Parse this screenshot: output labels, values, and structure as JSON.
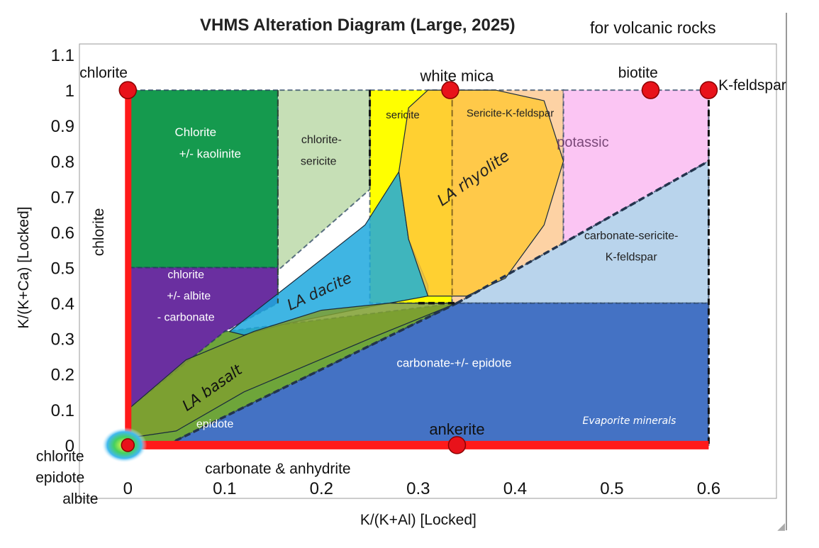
{
  "header": {
    "title": "VHMS Alteration Diagram (Large, 2025)",
    "subtitle": "for volcanic rocks"
  },
  "axes": {
    "xlabel": "K/(K+Al) [Locked]",
    "ylabel": "K/(K+Ca) [Locked]",
    "xlim": [
      -0.05,
      0.67
    ],
    "ylim": [
      -0.15,
      1.13
    ],
    "x_ticks": [
      {
        "v": 0,
        "label": "0"
      },
      {
        "v": 0.1,
        "label": "0.1"
      },
      {
        "v": 0.2,
        "label": "0.2"
      },
      {
        "v": 0.3,
        "label": "0.3"
      },
      {
        "v": 0.4,
        "label": "0.4"
      },
      {
        "v": 0.5,
        "label": "0.5"
      },
      {
        "v": 0.6,
        "label": "0.6"
      }
    ],
    "y_ticks": [
      {
        "v": 0,
        "label": "0"
      },
      {
        "v": 0.1,
        "label": "0.1"
      },
      {
        "v": 0.2,
        "label": "0.2"
      },
      {
        "v": 0.3,
        "label": "0.3"
      },
      {
        "v": 0.4,
        "label": "0.4"
      },
      {
        "v": 0.5,
        "label": "0.5"
      },
      {
        "v": 0.6,
        "label": "0.6"
      },
      {
        "v": 0.7,
        "label": "0.7"
      },
      {
        "v": 0.8,
        "label": "0.8"
      },
      {
        "v": 0.9,
        "label": "0.9"
      },
      {
        "v": 1,
        "label": "1"
      },
      {
        "v": 1.1,
        "label": "1.1"
      }
    ]
  },
  "fields": [
    {
      "id": "chlorite-kaolinite",
      "color": "#159a4e",
      "points": [
        [
          0,
          0.5
        ],
        [
          0.155,
          0.5
        ],
        [
          0.155,
          1
        ],
        [
          0,
          1
        ]
      ]
    },
    {
      "id": "chlorite-sericite",
      "color": "#c6dfb6",
      "points": [
        [
          0.155,
          0.5
        ],
        [
          0.155,
          1
        ],
        [
          0.25,
          1
        ],
        [
          0.25,
          0.72
        ],
        [
          0.15,
          0.48
        ]
      ]
    },
    {
      "id": "sericite",
      "color": "#ffff00",
      "points": [
        [
          0.25,
          1
        ],
        [
          0.335,
          1
        ],
        [
          0.335,
          0.4
        ],
        [
          0.25,
          0.4
        ]
      ]
    },
    {
      "id": "sericite-k-feldspar",
      "color": "#fdd2a4",
      "points": [
        [
          0.335,
          1
        ],
        [
          0.45,
          1
        ],
        [
          0.45,
          0.44
        ],
        [
          0.335,
          0.4
        ]
      ]
    },
    {
      "id": "potassic",
      "color": "#fbc5f3",
      "points": [
        [
          0.45,
          1
        ],
        [
          0.6,
          1
        ],
        [
          0.6,
          0.8
        ],
        [
          0.45,
          0.55
        ]
      ]
    },
    {
      "id": "carbonate-sericite-k-feldspar",
      "color": "#b9d4ec",
      "points": [
        [
          0.34,
          0.4
        ],
        [
          0.6,
          0.8
        ],
        [
          0.6,
          0.4
        ]
      ]
    },
    {
      "id": "chlorite-albite-carbonate",
      "color": "#6a2fa0",
      "points": [
        [
          0,
          0
        ],
        [
          0,
          0.5
        ],
        [
          0.155,
          0.5
        ],
        [
          0.155,
          0.4
        ],
        [
          0.1,
          0.32
        ]
      ]
    },
    {
      "id": "epidote",
      "color": "#6ea53a",
      "points": [
        [
          0,
          0
        ],
        [
          0.04,
          0
        ],
        [
          0.34,
          0.4
        ],
        [
          0.1,
          0.32
        ],
        [
          0,
          0.1
        ]
      ]
    },
    {
      "id": "carbonate-epidote",
      "color": "#4472c4",
      "points": [
        [
          0.04,
          0
        ],
        [
          0.6,
          0
        ],
        [
          0.6,
          0.4
        ],
        [
          0.34,
          0.4
        ]
      ]
    }
  ],
  "rock_fields": [
    {
      "id": "la-dacite",
      "color": "#1da8de",
      "points": [
        [
          0.105,
          0.32
        ],
        [
          0.18,
          0.48
        ],
        [
          0.245,
          0.62
        ],
        [
          0.28,
          0.77
        ],
        [
          0.29,
          0.58
        ],
        [
          0.31,
          0.45
        ],
        [
          0.31,
          0.42
        ],
        [
          0.25,
          0.39
        ],
        [
          0.16,
          0.34
        ],
        [
          0.12,
          0.31
        ]
      ]
    },
    {
      "id": "la-rhyolite",
      "color": "#ffc83a",
      "points": [
        [
          0.28,
          0.77
        ],
        [
          0.29,
          0.95
        ],
        [
          0.31,
          1.0
        ],
        [
          0.38,
          1.0
        ],
        [
          0.43,
          0.97
        ],
        [
          0.45,
          0.8
        ],
        [
          0.43,
          0.62
        ],
        [
          0.39,
          0.47
        ],
        [
          0.35,
          0.42
        ],
        [
          0.31,
          0.42
        ],
        [
          0.29,
          0.58
        ]
      ]
    },
    {
      "id": "la-basalt",
      "color": "#7f9f30",
      "points": [
        [
          0,
          0.1
        ],
        [
          0.06,
          0.24
        ],
        [
          0.13,
          0.32
        ],
        [
          0.2,
          0.38
        ],
        [
          0.27,
          0.4
        ],
        [
          0.34,
          0.4
        ],
        [
          0.25,
          0.3
        ],
        [
          0.12,
          0.15
        ],
        [
          0.05,
          0.04
        ],
        [
          0,
          0.02
        ]
      ]
    }
  ],
  "endmembers": [
    {
      "label": "chlorite",
      "x": 0,
      "y": 1
    },
    {
      "label": "white mica",
      "x": 0.333,
      "y": 1
    },
    {
      "label": "biotite",
      "x": 0.54,
      "y": 1
    },
    {
      "label": "K-feldspar",
      "x": 0.6,
      "y": 1
    },
    {
      "label": "ankerite",
      "x": 0.34,
      "y": 0
    },
    {
      "label": "chlorite epidote albite",
      "x": 0,
      "y": 0
    }
  ],
  "labels": {
    "chlorite_kaolinite_1": "Chlorite",
    "chlorite_kaolinite_2": "+/- kaolinite",
    "chlorite_sericite_1": "chlorite-",
    "chlorite_sericite_2": "sericite",
    "sericite": "sericite",
    "sericite_k_feldspar": "Sericite-K-feldspar",
    "potassic": "potassic",
    "la_rhyolite": "LA rhyolite",
    "la_dacite": "LA dacite",
    "la_basalt": "LA basalt",
    "carbonate_sericite_1": "carbonate-sericite-",
    "carbonate_sericite_2": "K-feldspar",
    "chlorite_albite_1": "chlorite",
    "chlorite_albite_2": "+/- albite",
    "chlorite_albite_3": "- carbonate",
    "epidote": "epidote",
    "carbonate_epidote": "carbonate-+/- epidote",
    "evaporite": "Evaporite minerals",
    "left_edge": "chlorite",
    "bottom_edge": "carbonate & anhydrite",
    "chlorite_top": "chlorite",
    "white_mica": "white mica",
    "biotite": "biotite",
    "k_feldspar": "K-feldspar",
    "ankerite": "ankerite",
    "origin_1": "chlorite",
    "origin_2": "epidote",
    "origin_3": "albite"
  },
  "colors": {
    "edge_red": "#ff1a1a",
    "point_fill": "#e8121a",
    "point_stroke": "#8a0000"
  }
}
